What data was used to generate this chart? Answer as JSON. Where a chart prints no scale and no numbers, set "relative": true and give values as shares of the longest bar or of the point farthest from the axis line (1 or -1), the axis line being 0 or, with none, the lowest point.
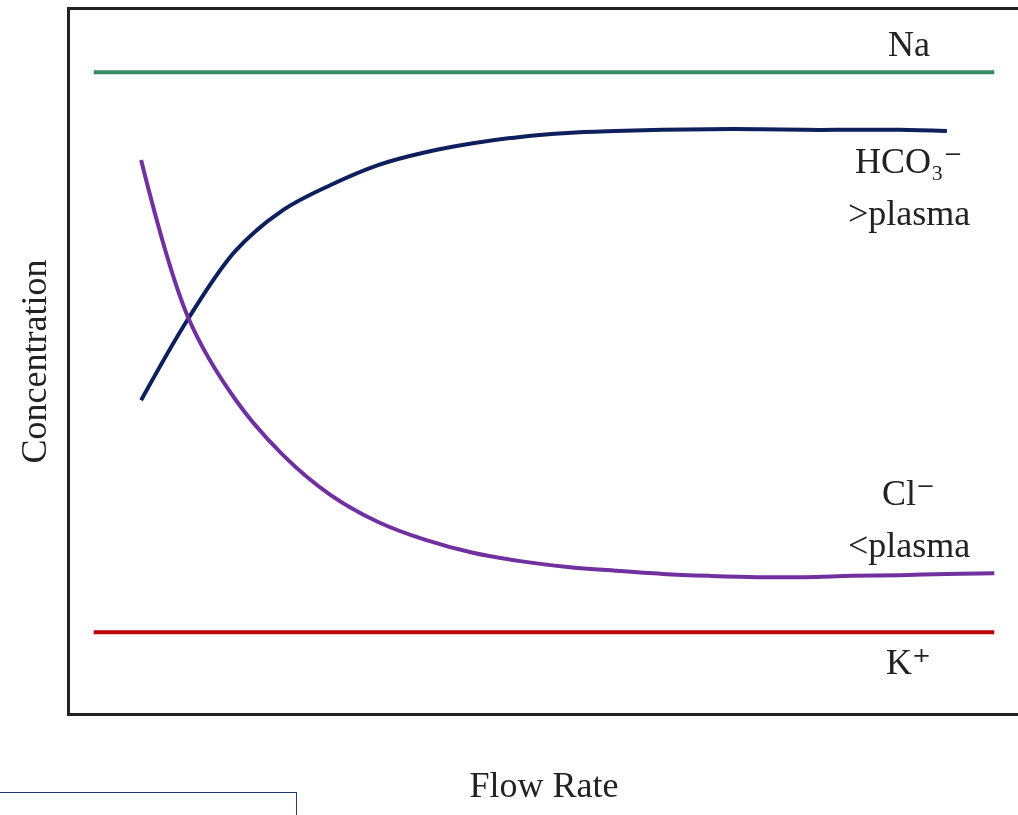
{
  "chart_data": {
    "type": "line",
    "relative": true,
    "xlabel": "Flow Rate",
    "ylabel": "Concentration",
    "legend": false,
    "marker": "none",
    "line_style": "solid",
    "categories": [
      null,
      null,
      null,
      null,
      null,
      null,
      null,
      null,
      null,
      null,
      null,
      null,
      null,
      null,
      null,
      null,
      null,
      null,
      null,
      null
    ],
    "series": [
      {
        "name": "Na",
        "color": "#3a8a66",
        "values": [
          1,
          1,
          1,
          1,
          1,
          1,
          1,
          1,
          1,
          1,
          1,
          1,
          1,
          1,
          1,
          1,
          1,
          1,
          1,
          1
        ]
      },
      {
        "name": "HCO₃⁻",
        "color": "#0d1f5c",
        "values": [
          null,
          0.488,
          0.616,
          0.722,
          0.785,
          0.824,
          0.855,
          0.875,
          0.889,
          0.899,
          0.905,
          0.908,
          0.91,
          0.911,
          0.911,
          0.91,
          0.91,
          0.91,
          0.908,
          null
        ]
      },
      {
        "name": "Cl⁻",
        "color": "#7030a0",
        "values": [
          null,
          0.863,
          0.616,
          0.488,
          0.402,
          0.34,
          0.298,
          0.27,
          0.25,
          0.237,
          0.228,
          0.222,
          0.217,
          0.214,
          0.212,
          0.212,
          0.214,
          0.215,
          0.217,
          0.218
        ]
      },
      {
        "name": "K⁺",
        "color": "#c00000",
        "values": [
          0.126,
          0.126,
          0.126,
          0.126,
          0.126,
          0.126,
          0.126,
          0.126,
          0.126,
          0.126,
          0.126,
          0.126,
          0.126,
          0.126,
          0.126,
          0.126,
          0.126,
          0.126,
          0.126,
          0.126
        ]
      }
    ],
    "annotations": [
      ">plasma",
      "<plasma"
    ]
  }
}
